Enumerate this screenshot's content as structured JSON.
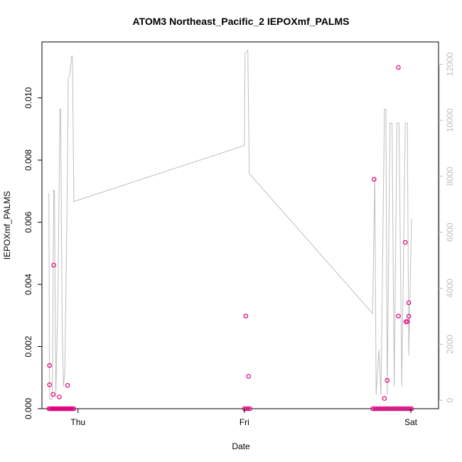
{
  "chart_data": {
    "type": "scatter",
    "title": "ATOM3 Northeast_Pacific_2 IEPOXmf_PALMS",
    "xlabel": "Date",
    "ylabel": "IEPOXmf_PALMS",
    "x_ticks": [
      {
        "label": "Thu",
        "value": 0
      },
      {
        "label": "Fri",
        "value": 24
      },
      {
        "label": "Sat",
        "value": 48
      }
    ],
    "xlim": [
      -5.2,
      52
    ],
    "ylim": [
      0,
      0.0118
    ],
    "y_ticks": [
      0.0,
      0.002,
      0.004,
      0.006,
      0.008,
      0.01
    ],
    "y_tick_labels": [
      "0.000",
      "0.002",
      "0.004",
      "0.006",
      "0.008",
      "0.010"
    ],
    "y2lim": [
      -300,
      12800
    ],
    "y2_ticks": [
      0,
      2000,
      4000,
      6000,
      8000,
      10000,
      12000
    ],
    "y2_tick_labels": [
      "0",
      "2000",
      "4000",
      "6000",
      "8000",
      "10000",
      "12000"
    ],
    "grid": false,
    "colors": {
      "points": "#e6007e",
      "altitude_line": "#bfbfbf",
      "axis": "#000000",
      "right_axis": "#bfbfbf"
    },
    "series": [
      {
        "kind": "points",
        "values": [
          [
            -4.1,
            0.00139
          ],
          [
            -4.1,
            0.00077
          ],
          [
            -3.6,
            0.00046
          ],
          [
            -3.5,
            0.00462
          ],
          [
            -2.7,
            0.00038
          ],
          [
            -1.5,
            0.00075
          ],
          [
            24.2,
            0.00298
          ],
          [
            24.6,
            0.00104
          ],
          [
            42.7,
            0.00738
          ],
          [
            44.2,
            0.00033
          ],
          [
            44.6,
            0.00091
          ],
          [
            46.2,
            0.01098
          ],
          [
            46.2,
            0.00298
          ],
          [
            47.2,
            0.00535
          ],
          [
            47.3,
            0.0028
          ],
          [
            47.5,
            0.0028
          ],
          [
            47.7,
            0.00341
          ],
          [
            47.7,
            0.00297
          ],
          [
            -4.2,
            0
          ],
          [
            -4.0,
            0
          ],
          [
            -3.8,
            0
          ],
          [
            -3.6,
            0
          ],
          [
            -3.4,
            0
          ],
          [
            -3.2,
            0
          ],
          [
            -3.0,
            0
          ],
          [
            -2.8,
            0
          ],
          [
            -2.6,
            0
          ],
          [
            -2.4,
            0
          ],
          [
            -2.2,
            0
          ],
          [
            -2.0,
            0
          ],
          [
            -1.8,
            0
          ],
          [
            -1.6,
            0
          ],
          [
            -1.4,
            0
          ],
          [
            -1.2,
            0
          ],
          [
            -1.0,
            0
          ],
          [
            -0.8,
            0
          ],
          [
            -0.6,
            0
          ],
          [
            24.0,
            0
          ],
          [
            24.2,
            0
          ],
          [
            24.5,
            0
          ],
          [
            24.8,
            0
          ],
          [
            42.5,
            0
          ],
          [
            42.8,
            0
          ],
          [
            43.1,
            0
          ],
          [
            43.4,
            0
          ],
          [
            43.7,
            0
          ],
          [
            44.0,
            0
          ],
          [
            44.3,
            0
          ],
          [
            44.6,
            0
          ],
          [
            44.9,
            0
          ],
          [
            45.2,
            0
          ],
          [
            45.5,
            0
          ],
          [
            45.8,
            0
          ],
          [
            46.1,
            0
          ],
          [
            46.4,
            0
          ],
          [
            46.7,
            0
          ],
          [
            47.0,
            0
          ],
          [
            47.3,
            0
          ],
          [
            47.6,
            0
          ],
          [
            47.9,
            0
          ],
          [
            48.1,
            0
          ]
        ]
      },
      {
        "kind": "altitude_line",
        "values": [
          [
            -4.2,
            7400
          ],
          [
            -4.1,
            50
          ],
          [
            -3.7,
            50
          ],
          [
            -3.5,
            7500
          ],
          [
            -3.4,
            7500
          ],
          [
            -3.2,
            100
          ],
          [
            -2.9,
            3500
          ],
          [
            -2.6,
            10400
          ],
          [
            -2.5,
            10400
          ],
          [
            -2.3,
            3000
          ],
          [
            -2.1,
            500
          ],
          [
            -1.9,
            1000
          ],
          [
            -1.6,
            6500
          ],
          [
            -1.4,
            11500
          ],
          [
            -1.2,
            11600
          ],
          [
            -0.9,
            12300
          ],
          [
            -0.8,
            12300
          ],
          [
            -0.6,
            7100
          ],
          [
            24.0,
            9100
          ],
          [
            24.1,
            12400
          ],
          [
            24.5,
            12500
          ],
          [
            24.7,
            8100
          ],
          [
            42.5,
            3100
          ],
          [
            42.8,
            8000
          ],
          [
            43.0,
            200
          ],
          [
            43.4,
            1800
          ],
          [
            43.7,
            200
          ],
          [
            44.2,
            10400
          ],
          [
            44.4,
            10400
          ],
          [
            44.6,
            200
          ],
          [
            45.0,
            9900
          ],
          [
            45.3,
            9900
          ],
          [
            45.6,
            500
          ],
          [
            46.0,
            9900
          ],
          [
            46.3,
            9900
          ],
          [
            46.7,
            500
          ],
          [
            47.2,
            9900
          ],
          [
            47.5,
            9900
          ],
          [
            47.7,
            1600
          ],
          [
            48.1,
            6500
          ]
        ]
      }
    ]
  }
}
